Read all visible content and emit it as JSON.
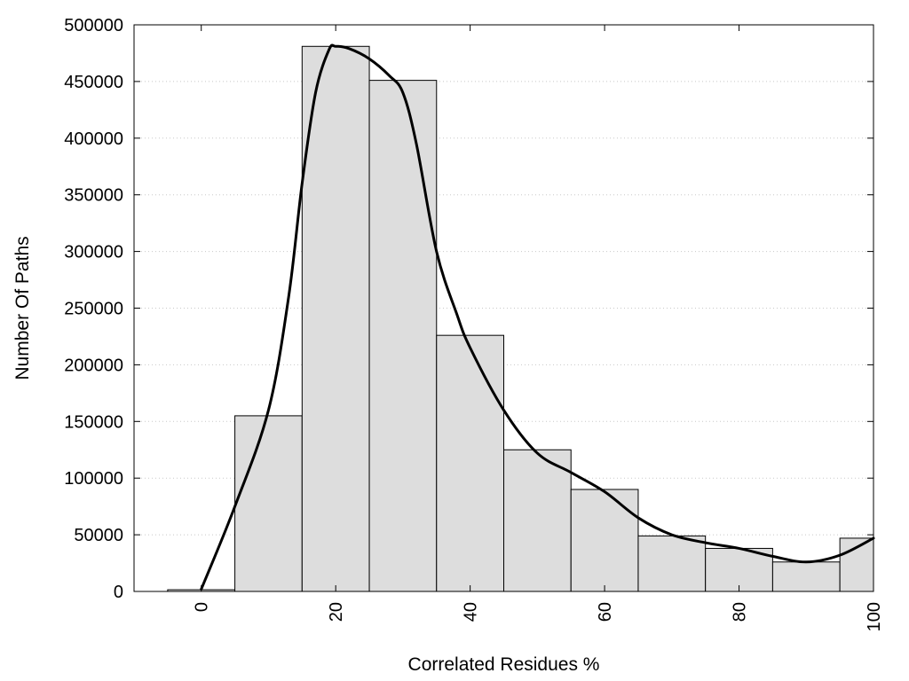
{
  "chart_data": {
    "type": "bar",
    "title": "",
    "xlabel": "Correlated Residues %",
    "ylabel": "Number Of Paths",
    "xlim": [
      -10,
      100
    ],
    "ylim": [
      0,
      500000
    ],
    "bin_width": 10,
    "x": [
      0,
      10,
      20,
      30,
      40,
      50,
      60,
      70,
      80,
      90,
      100
    ],
    "values": [
      1500,
      155000,
      481000,
      451000,
      226000,
      125000,
      90000,
      49000,
      38000,
      26000,
      47000
    ],
    "x_ticks": [
      0,
      20,
      40,
      60,
      80,
      100
    ],
    "x_tick_labels": [
      "0",
      "20",
      "40",
      "60",
      "80",
      "100"
    ],
    "y_ticks": [
      0,
      50000,
      100000,
      150000,
      200000,
      250000,
      300000,
      350000,
      400000,
      450000,
      500000
    ],
    "y_tick_labels": [
      "0",
      "50000",
      "100000",
      "150000",
      "200000",
      "250000",
      "300000",
      "350000",
      "400000",
      "450000",
      "500000"
    ],
    "grid": "horizontal dotted",
    "legend": "none",
    "bar_color": "#dddddd",
    "bar_edge_color": "#000000",
    "curve": {
      "x": [
        0,
        5,
        10,
        13,
        15,
        17,
        19,
        20,
        22,
        25,
        28,
        30,
        32,
        35,
        38,
        40,
        45,
        50,
        55,
        60,
        65,
        70,
        75,
        80,
        85,
        90,
        95,
        100
      ],
      "y": [
        2000,
        75000,
        160000,
        260000,
        360000,
        440000,
        478000,
        481000,
        479000,
        470000,
        455000,
        440000,
        395000,
        300000,
        245000,
        215000,
        160000,
        122000,
        105000,
        88000,
        65000,
        50000,
        43000,
        38000,
        31000,
        26000,
        32000,
        47000
      ],
      "color": "#000000"
    }
  }
}
